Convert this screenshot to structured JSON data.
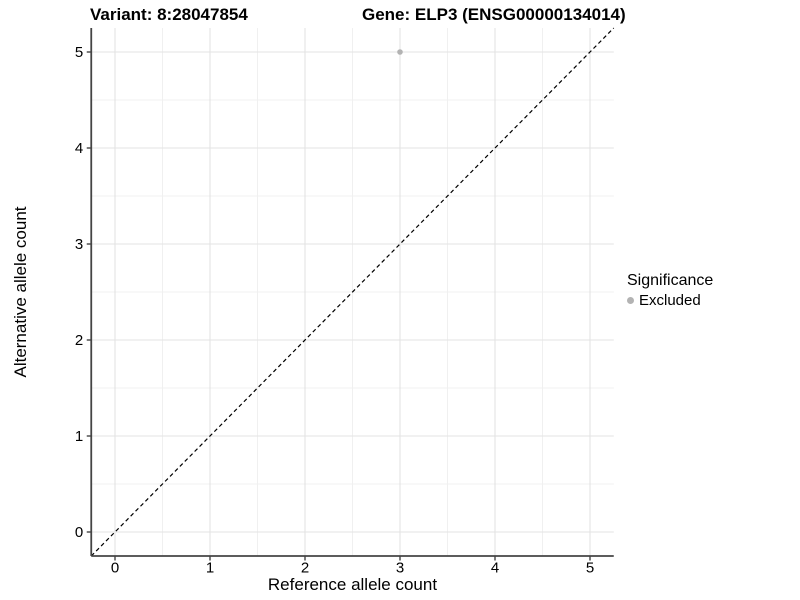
{
  "titles": {
    "variant": "Variant: 8:28047854",
    "gene": "Gene: ELP3 (ENSG00000134014)"
  },
  "chart_data": {
    "type": "scatter",
    "xlabel": "Reference allele count",
    "ylabel": "Alternative allele count",
    "xlim": [
      -0.25,
      5.25
    ],
    "ylim": [
      -0.25,
      5.25
    ],
    "x_ticks": [
      0,
      1,
      2,
      3,
      4,
      5
    ],
    "y_ticks": [
      0,
      1,
      2,
      3,
      4,
      5
    ],
    "points": [
      {
        "x": 3,
        "y": 5,
        "significance": "Excluded"
      }
    ],
    "reference_line": {
      "type": "identity",
      "style": "dashed",
      "color": "#000000"
    },
    "grid": {
      "major_color": "#e3e3e3",
      "minor_color": "#f0f0f0",
      "minor_step": 0.5
    },
    "axis_color": "#444444",
    "tick_label_color": "#000000",
    "point_radius": 2.8,
    "legend_position": "right",
    "legend": {
      "title": "Significance",
      "items": [
        {
          "label": "Excluded",
          "color": "#b3b3b3"
        }
      ]
    }
  }
}
